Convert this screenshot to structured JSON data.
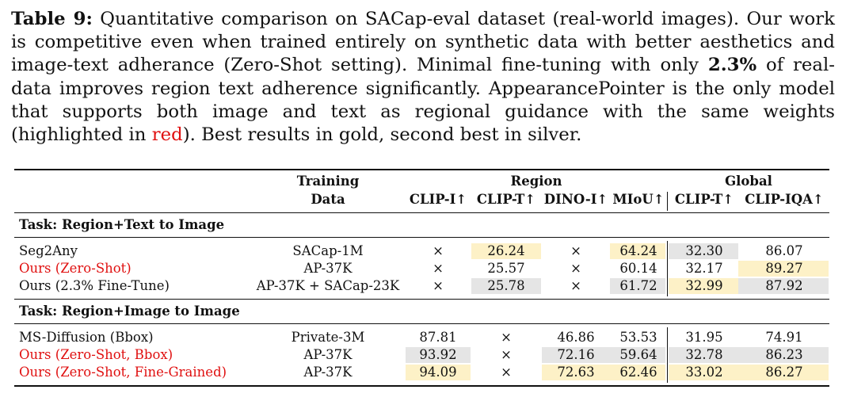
{
  "caption": {
    "label": "Table 9:",
    "text_1": " Quantitative comparison on SACap-eval dataset (real-world images). Our work is competitive even when trained entirely on synthetic data with better aesthetics and image-text adherance (Zero-Shot setting). Minimal fine-tuning with only ",
    "bold_value": "2.3%",
    "text_2": " of real-data improves region text adherence significantly. AppearancePointer is the only model that supports both image and text as regional guidance with the same weights (highlighted in ",
    "red_word": "red",
    "text_3": "). Best results in gold, second best in silver."
  },
  "header": {
    "training_1": "Training",
    "training_2": "Data",
    "region": "Region",
    "global": "Global",
    "cols": [
      "CLIP-I↑",
      "CLIP-T↑",
      "DINO-I↑",
      "MIoU↑",
      "CLIP-T↑",
      "CLIP-IQA↑"
    ]
  },
  "task1": {
    "title": "Task: Region+Text to Image",
    "rows": [
      {
        "method": "Seg2Any",
        "data": "SACap-1M",
        "v": [
          "×",
          "26.24",
          "×",
          "64.24",
          "32.30",
          "86.07"
        ]
      },
      {
        "method": "Ours (Zero-Shot)",
        "data": "AP-37K",
        "v": [
          "×",
          "25.57",
          "×",
          "60.14",
          "32.17",
          "89.27"
        ]
      },
      {
        "method": "Ours (2.3% Fine-Tune)",
        "data": "AP-37K + SACap-23K",
        "v": [
          "×",
          "25.78",
          "×",
          "61.72",
          "32.99",
          "87.92"
        ]
      }
    ]
  },
  "task2": {
    "title": "Task: Region+Image to Image",
    "rows": [
      {
        "method": "MS-Diffusion (Bbox)",
        "data": "Private-3M",
        "v": [
          "87.81",
          "×",
          "46.86",
          "53.53",
          "31.95",
          "74.91"
        ]
      },
      {
        "method": "Ours (Zero-Shot, Bbox)",
        "data": "AP-37K",
        "v": [
          "93.92",
          "×",
          "72.16",
          "59.64",
          "32.78",
          "86.23"
        ]
      },
      {
        "method": "Ours (Zero-Shot, Fine-Grained)",
        "data": "AP-37K",
        "v": [
          "94.09",
          "×",
          "72.63",
          "62.46",
          "33.02",
          "86.27"
        ]
      }
    ]
  }
}
